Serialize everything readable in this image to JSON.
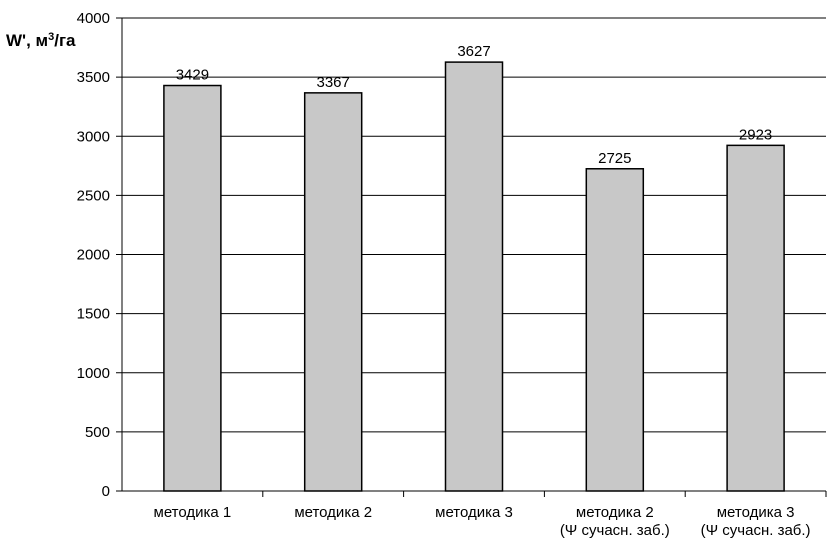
{
  "chart_data": {
    "type": "bar",
    "title": "",
    "xlabel": "",
    "ylabel": {
      "prefix": "W', м",
      "sup": "3",
      "suffix": "/га"
    },
    "ylim": [
      0,
      4000
    ],
    "yticks": [
      0,
      500,
      1000,
      1500,
      2000,
      2500,
      3000,
      3500,
      4000
    ],
    "grid": "horizontal",
    "categories": [
      [
        "методика 1"
      ],
      [
        "методика 2"
      ],
      [
        "методика 3"
      ],
      [
        "методика 2",
        "(Ψ сучасн. заб.)"
      ],
      [
        "методика 3",
        "(Ψ сучасн. заб.)"
      ]
    ],
    "values": [
      3429,
      3367,
      3627,
      2725,
      2923
    ],
    "bar_color": "#c8c8c8",
    "bar_stroke": "#000000",
    "grid_color": "#000000"
  }
}
